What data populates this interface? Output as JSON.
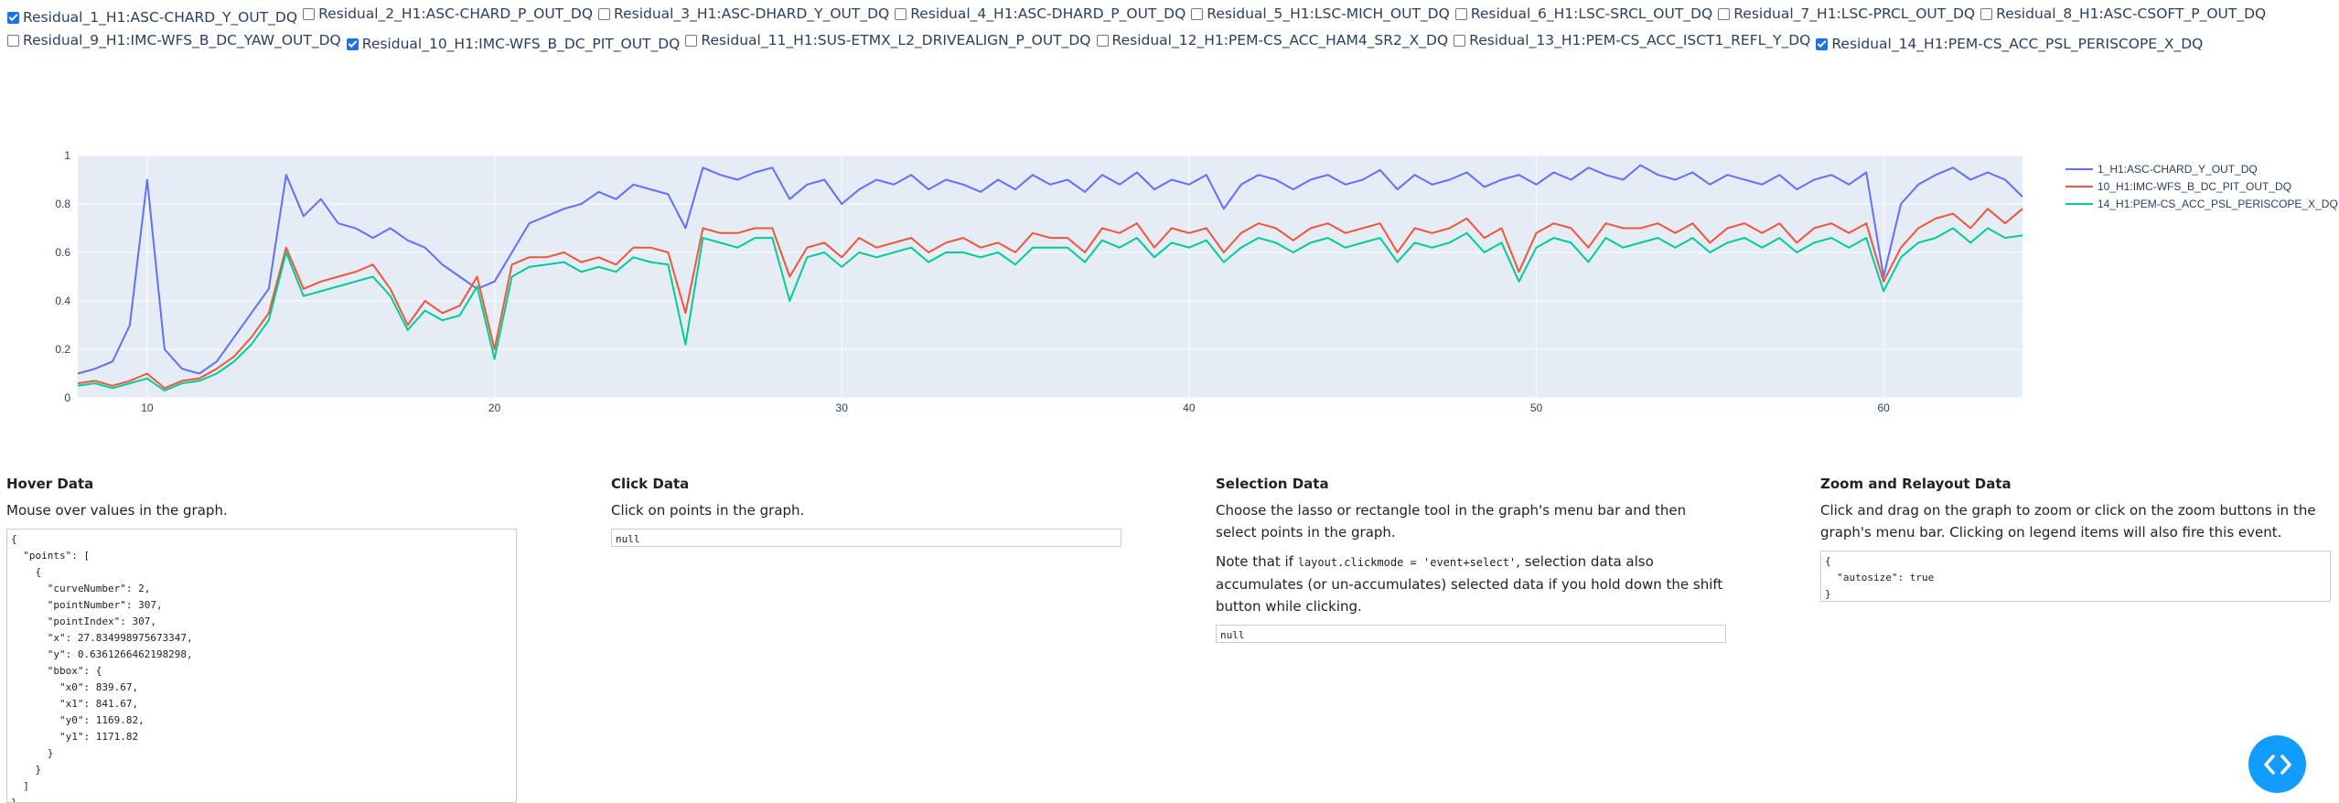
{
  "checkboxes": [
    {
      "label": "Residual_1_H1:ASC-CHARD_Y_OUT_DQ",
      "checked": true
    },
    {
      "label": "Residual_2_H1:ASC-CHARD_P_OUT_DQ",
      "checked": false
    },
    {
      "label": "Residual_3_H1:ASC-DHARD_Y_OUT_DQ",
      "checked": false
    },
    {
      "label": "Residual_4_H1:ASC-DHARD_P_OUT_DQ",
      "checked": false
    },
    {
      "label": "Residual_5_H1:LSC-MICH_OUT_DQ",
      "checked": false
    },
    {
      "label": "Residual_6_H1:LSC-SRCL_OUT_DQ",
      "checked": false
    },
    {
      "label": "Residual_7_H1:LSC-PRCL_OUT_DQ",
      "checked": false
    },
    {
      "label": "Residual_8_H1:ASC-CSOFT_P_OUT_DQ",
      "checked": false
    },
    {
      "label": "Residual_9_H1:IMC-WFS_B_DC_YAW_OUT_DQ",
      "checked": false
    },
    {
      "label": "Residual_10_H1:IMC-WFS_B_DC_PIT_OUT_DQ",
      "checked": true
    },
    {
      "label": "Residual_11_H1:SUS-ETMX_L2_DRIVEALIGN_P_OUT_DQ",
      "checked": false
    },
    {
      "label": "Residual_12_H1:PEM-CS_ACC_HAM4_SR2_X_DQ",
      "checked": false
    },
    {
      "label": "Residual_13_H1:PEM-CS_ACC_ISCT1_REFL_Y_DQ",
      "checked": false
    },
    {
      "label": "Residual_14_H1:PEM-CS_ACC_PSL_PERISCOPE_X_DQ",
      "checked": true
    }
  ],
  "chart_data": {
    "type": "line",
    "xlim": [
      8,
      64
    ],
    "ylim": [
      0,
      1
    ],
    "x_ticks": [
      "10",
      "20",
      "30",
      "40",
      "50",
      "60"
    ],
    "y_ticks": [
      "0",
      "0.2",
      "0.4",
      "0.6",
      "0.8",
      "1"
    ],
    "grid": true,
    "legend_position": "top-right",
    "x": [
      8,
      8.5,
      9,
      9.5,
      10,
      10.5,
      11,
      11.5,
      12,
      12.5,
      13,
      13.5,
      14,
      14.5,
      15,
      15.5,
      16,
      16.5,
      17,
      17.5,
      18,
      18.5,
      19,
      19.5,
      20,
      20.5,
      21,
      21.5,
      22,
      22.5,
      23,
      23.5,
      24,
      24.5,
      25,
      25.5,
      26,
      26.5,
      27,
      27.5,
      28,
      28.5,
      29,
      29.5,
      30,
      30.5,
      31,
      31.5,
      32,
      32.5,
      33,
      33.5,
      34,
      34.5,
      35,
      35.5,
      36,
      36.5,
      37,
      37.5,
      38,
      38.5,
      39,
      39.5,
      40,
      40.5,
      41,
      41.5,
      42,
      42.5,
      43,
      43.5,
      44,
      44.5,
      45,
      45.5,
      46,
      46.5,
      47,
      47.5,
      48,
      48.5,
      49,
      49.5,
      50,
      50.5,
      51,
      51.5,
      52,
      52.5,
      53,
      53.5,
      54,
      54.5,
      55,
      55.5,
      56,
      56.5,
      57,
      57.5,
      58,
      58.5,
      59,
      59.5,
      60,
      60.5,
      61,
      61.5,
      62,
      62.5,
      63,
      63.5,
      64
    ],
    "series": [
      {
        "name": "1_H1:ASC-CHARD_Y_OUT_DQ",
        "color": "#636efa",
        "values": [
          0.1,
          0.12,
          0.15,
          0.3,
          0.9,
          0.2,
          0.12,
          0.1,
          0.15,
          0.25,
          0.35,
          0.45,
          0.92,
          0.75,
          0.82,
          0.72,
          0.7,
          0.66,
          0.7,
          0.65,
          0.62,
          0.55,
          0.5,
          0.45,
          0.48,
          0.6,
          0.72,
          0.75,
          0.78,
          0.8,
          0.85,
          0.82,
          0.88,
          0.86,
          0.84,
          0.7,
          0.95,
          0.92,
          0.9,
          0.93,
          0.95,
          0.82,
          0.88,
          0.9,
          0.8,
          0.86,
          0.9,
          0.88,
          0.92,
          0.86,
          0.9,
          0.88,
          0.85,
          0.9,
          0.86,
          0.92,
          0.88,
          0.9,
          0.85,
          0.92,
          0.88,
          0.93,
          0.86,
          0.9,
          0.88,
          0.92,
          0.78,
          0.88,
          0.92,
          0.9,
          0.86,
          0.9,
          0.92,
          0.88,
          0.9,
          0.94,
          0.86,
          0.92,
          0.88,
          0.9,
          0.93,
          0.87,
          0.9,
          0.92,
          0.88,
          0.93,
          0.9,
          0.95,
          0.92,
          0.9,
          0.96,
          0.92,
          0.9,
          0.93,
          0.88,
          0.92,
          0.9,
          0.88,
          0.92,
          0.86,
          0.9,
          0.92,
          0.88,
          0.93,
          0.5,
          0.8,
          0.88,
          0.92,
          0.95,
          0.9,
          0.93,
          0.9,
          0.83
        ]
      },
      {
        "name": "10_H1:IMC-WFS_B_DC_PIT_OUT_DQ",
        "color": "#ef553b",
        "values": [
          0.06,
          0.07,
          0.05,
          0.07,
          0.1,
          0.04,
          0.07,
          0.08,
          0.12,
          0.17,
          0.25,
          0.35,
          0.62,
          0.45,
          0.48,
          0.5,
          0.52,
          0.55,
          0.45,
          0.3,
          0.4,
          0.35,
          0.38,
          0.5,
          0.2,
          0.55,
          0.58,
          0.58,
          0.6,
          0.56,
          0.58,
          0.55,
          0.62,
          0.62,
          0.6,
          0.35,
          0.7,
          0.68,
          0.68,
          0.7,
          0.7,
          0.5,
          0.62,
          0.64,
          0.58,
          0.66,
          0.62,
          0.64,
          0.66,
          0.6,
          0.64,
          0.66,
          0.62,
          0.64,
          0.6,
          0.68,
          0.66,
          0.66,
          0.6,
          0.7,
          0.68,
          0.72,
          0.62,
          0.7,
          0.68,
          0.7,
          0.6,
          0.68,
          0.72,
          0.7,
          0.65,
          0.7,
          0.72,
          0.68,
          0.7,
          0.72,
          0.6,
          0.7,
          0.68,
          0.7,
          0.74,
          0.66,
          0.7,
          0.52,
          0.68,
          0.72,
          0.7,
          0.62,
          0.72,
          0.7,
          0.7,
          0.72,
          0.68,
          0.72,
          0.64,
          0.7,
          0.72,
          0.68,
          0.72,
          0.64,
          0.7,
          0.72,
          0.68,
          0.72,
          0.48,
          0.62,
          0.7,
          0.74,
          0.76,
          0.7,
          0.78,
          0.72,
          0.78
        ]
      },
      {
        "name": "14_H1:PEM-CS_ACC_PSL_PERISCOPE_X_DQ",
        "color": "#00cc96",
        "values": [
          0.05,
          0.06,
          0.04,
          0.06,
          0.08,
          0.03,
          0.06,
          0.07,
          0.1,
          0.15,
          0.22,
          0.32,
          0.6,
          0.42,
          0.44,
          0.46,
          0.48,
          0.5,
          0.42,
          0.28,
          0.36,
          0.32,
          0.34,
          0.46,
          0.16,
          0.5,
          0.54,
          0.55,
          0.56,
          0.52,
          0.54,
          0.52,
          0.58,
          0.56,
          0.55,
          0.22,
          0.66,
          0.64,
          0.62,
          0.66,
          0.66,
          0.4,
          0.58,
          0.6,
          0.54,
          0.6,
          0.58,
          0.6,
          0.62,
          0.56,
          0.6,
          0.6,
          0.58,
          0.6,
          0.55,
          0.62,
          0.62,
          0.62,
          0.56,
          0.65,
          0.62,
          0.66,
          0.58,
          0.64,
          0.62,
          0.65,
          0.56,
          0.62,
          0.66,
          0.64,
          0.6,
          0.64,
          0.66,
          0.62,
          0.64,
          0.66,
          0.56,
          0.64,
          0.62,
          0.64,
          0.68,
          0.6,
          0.64,
          0.48,
          0.62,
          0.66,
          0.64,
          0.56,
          0.66,
          0.62,
          0.64,
          0.66,
          0.62,
          0.66,
          0.6,
          0.64,
          0.66,
          0.62,
          0.66,
          0.6,
          0.64,
          0.66,
          0.62,
          0.66,
          0.44,
          0.58,
          0.64,
          0.66,
          0.7,
          0.64,
          0.7,
          0.66,
          0.67
        ]
      }
    ]
  },
  "hover": {
    "title": "Hover Data",
    "desc": "Mouse over values in the graph.",
    "json": "{\n  \"points\": [\n    {\n      \"curveNumber\": 2,\n      \"pointNumber\": 307,\n      \"pointIndex\": 307,\n      \"x\": 27.834998975673347,\n      \"y\": 0.6361266462198298,\n      \"bbox\": {\n        \"x0\": 839.67,\n        \"x1\": 841.67,\n        \"y0\": 1169.82,\n        \"y1\": 1171.82\n      }\n    }\n  ]\n}"
  },
  "click": {
    "title": "Click Data",
    "desc": "Click on points in the graph.",
    "json": "null"
  },
  "selection": {
    "title": "Selection Data",
    "desc": "Choose the lasso or rectangle tool in the graph's menu bar and then select points in the graph.",
    "note_pre": "Note that if ",
    "note_code": "layout.clickmode = 'event+select'",
    "note_post": ", selection data also accumulates (or un-accumulates) selected data if you hold down the shift button while clicking.",
    "json": "null"
  },
  "zoom": {
    "title": "Zoom and Relayout Data",
    "desc": "Click and drag on the graph to zoom or click on the zoom buttons in the graph's menu bar. Clicking on legend items will also fire this event.",
    "json": "{\n  \"autosize\": true\n}"
  }
}
